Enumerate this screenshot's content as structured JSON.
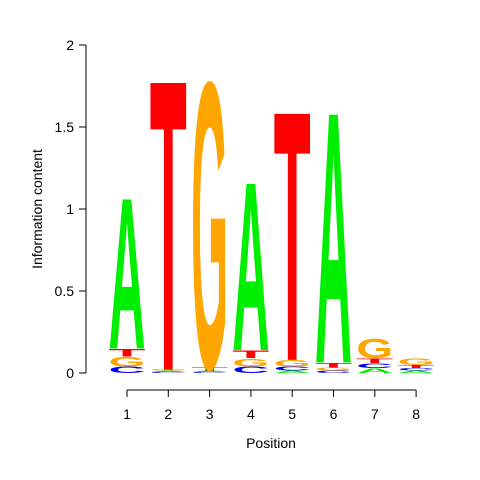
{
  "chart_data": {
    "type": "sequence-logo",
    "xlabel": "Position",
    "ylabel": "Information content",
    "ylim": [
      0,
      2
    ],
    "y_ticks": [
      "0",
      "0.5",
      "1",
      "1.5",
      "2"
    ],
    "y_tick_values": [
      0,
      0.5,
      1,
      1.5,
      2
    ],
    "positions": [
      "1",
      "2",
      "3",
      "4",
      "5",
      "6",
      "7",
      "8"
    ],
    "colors": {
      "A": "#00ee00",
      "C": "#0000ee",
      "G": "#ffa500",
      "T": "#ff0000"
    },
    "columns": [
      {
        "position": "1",
        "letters": [
          {
            "base": "C",
            "height": 0.04
          },
          {
            "base": "G",
            "height": 0.06
          },
          {
            "base": "T",
            "height": 0.05
          },
          {
            "base": "A",
            "height": 0.95
          }
        ]
      },
      {
        "position": "2",
        "letters": [
          {
            "base": "C",
            "height": 0.006
          },
          {
            "base": "A",
            "height": 0.008
          },
          {
            "base": "G",
            "height": 0.006
          },
          {
            "base": "T",
            "height": 1.83
          }
        ]
      },
      {
        "position": "3",
        "letters": [
          {
            "base": "C",
            "height": 0.006
          },
          {
            "base": "A",
            "height": 0.008
          },
          {
            "base": "T",
            "height": 0.02
          },
          {
            "base": "G",
            "height": 1.8
          }
        ]
      },
      {
        "position": "4",
        "letters": [
          {
            "base": "C",
            "height": 0.04
          },
          {
            "base": "G",
            "height": 0.05
          },
          {
            "base": "T",
            "height": 0.05
          },
          {
            "base": "A",
            "height": 1.06
          }
        ]
      },
      {
        "position": "5",
        "letters": [
          {
            "base": "A",
            "height": 0.015
          },
          {
            "base": "C",
            "height": 0.025
          },
          {
            "base": "G",
            "height": 0.04
          },
          {
            "base": "T",
            "height": 1.57
          }
        ]
      },
      {
        "position": "6",
        "letters": [
          {
            "base": "C",
            "height": 0.015
          },
          {
            "base": "G",
            "height": 0.02
          },
          {
            "base": "T",
            "height": 0.03
          },
          {
            "base": "A",
            "height": 1.58
          }
        ]
      },
      {
        "position": "7",
        "letters": [
          {
            "base": "A",
            "height": 0.03
          },
          {
            "base": "C",
            "height": 0.03
          },
          {
            "base": "T",
            "height": 0.03
          },
          {
            "base": "G",
            "height": 0.12
          }
        ]
      },
      {
        "position": "8",
        "letters": [
          {
            "base": "A",
            "height": 0.015
          },
          {
            "base": "C",
            "height": 0.015
          },
          {
            "base": "T",
            "height": 0.02
          },
          {
            "base": "G",
            "height": 0.04
          }
        ]
      }
    ]
  }
}
